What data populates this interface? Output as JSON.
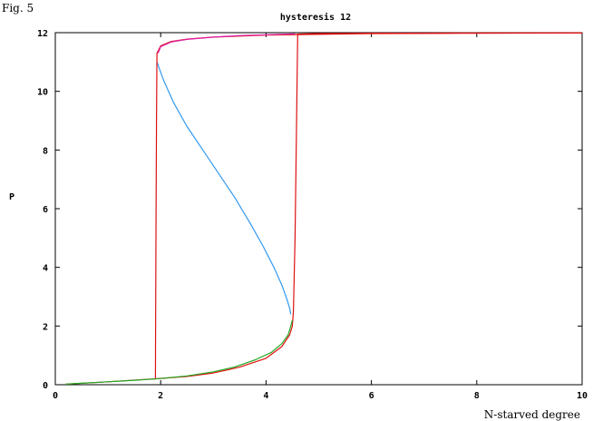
{
  "figure_label": "Fig. 5",
  "chart_data": {
    "type": "line",
    "title": "hysteresis 12",
    "xlabel": "N-starved degree",
    "ylabel": "P",
    "xlim": [
      0,
      10
    ],
    "ylim": [
      0,
      12
    ],
    "xticks": [
      0,
      2,
      4,
      6,
      8,
      10
    ],
    "yticks": [
      0,
      2,
      4,
      6,
      8,
      10,
      12
    ],
    "grid": false,
    "series": [
      {
        "color": "#3399ee",
        "x": [
          1.93,
          2.05,
          2.25,
          2.5,
          2.8,
          3.1,
          3.4,
          3.7,
          3.95,
          4.15,
          4.3,
          4.4,
          4.45,
          4.47
        ],
        "y": [
          11.0,
          10.4,
          9.6,
          8.8,
          8.0,
          7.2,
          6.4,
          5.5,
          4.7,
          4.0,
          3.4,
          2.9,
          2.6,
          2.4
        ]
      },
      {
        "color": "#dd1111",
        "x": [
          0.2,
          1.0,
          1.9,
          2.5,
          3.0,
          3.5,
          4.0,
          4.3,
          4.45,
          4.5,
          4.52,
          4.55,
          4.58,
          4.6,
          5.0,
          6.0,
          7.0,
          8.0,
          9.0,
          10.0
        ],
        "y": [
          0.02,
          0.1,
          0.2,
          0.28,
          0.4,
          0.6,
          0.9,
          1.3,
          1.7,
          2.0,
          2.5,
          5.0,
          9.0,
          11.95,
          11.97,
          11.98,
          11.98,
          11.99,
          11.99,
          11.99
        ]
      },
      {
        "color": "#dd1111",
        "x": [
          10.0,
          8.0,
          6.0,
          4.0,
          3.0,
          2.5,
          2.2,
          2.0,
          1.93,
          1.92,
          1.91,
          1.9
        ],
        "y": [
          11.99,
          11.98,
          11.97,
          11.92,
          11.85,
          11.78,
          11.7,
          11.55,
          11.3,
          9.0,
          5.0,
          0.2
        ]
      },
      {
        "color": "#dd22aa",
        "x": [
          1.95,
          2.0,
          2.2,
          2.5,
          3.0,
          3.5,
          4.0,
          4.55
        ],
        "y": [
          11.3,
          11.52,
          11.68,
          11.77,
          11.85,
          11.9,
          11.93,
          11.96
        ]
      },
      {
        "color": "#22aa22",
        "x": [
          0.2,
          0.5,
          1.0,
          1.5,
          2.0,
          2.5,
          3.0,
          3.4,
          3.8,
          4.1,
          4.3,
          4.42,
          4.47,
          4.5
        ],
        "y": [
          0.02,
          0.05,
          0.1,
          0.15,
          0.21,
          0.3,
          0.44,
          0.6,
          0.85,
          1.1,
          1.4,
          1.7,
          2.0,
          2.2
        ]
      }
    ]
  }
}
